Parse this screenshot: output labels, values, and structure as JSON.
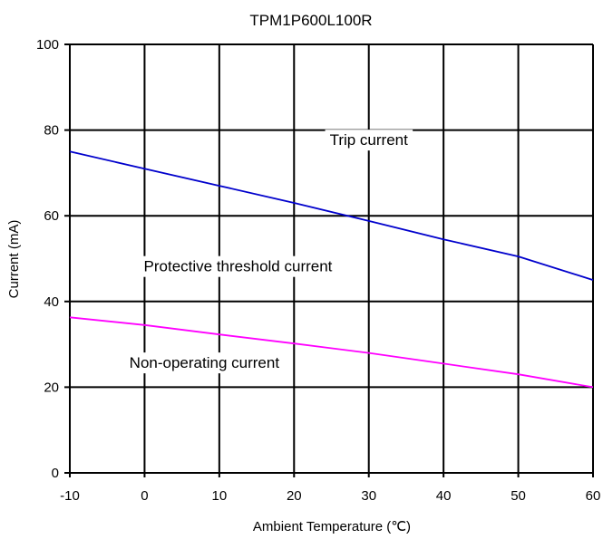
{
  "chart_data": {
    "type": "line",
    "title": "TPM1P600L100R",
    "xlabel": "Ambient Temperature (℃)",
    "ylabel": "Current (mA)",
    "xlim": [
      -10,
      60
    ],
    "ylim": [
      0,
      100
    ],
    "x_ticks": [
      -10,
      0,
      10,
      20,
      30,
      40,
      50,
      60
    ],
    "y_ticks": [
      0,
      20,
      40,
      60,
      80,
      100
    ],
    "grid": true,
    "series": [
      {
        "color": "#0000cc",
        "x": [
          -10,
          0,
          10,
          20,
          30,
          40,
          50,
          60
        ],
        "y": [
          75,
          71,
          67,
          63,
          58.8,
          54.5,
          50.5,
          45
        ]
      },
      {
        "color": "#ff00ff",
        "x": [
          -10,
          0,
          10,
          20,
          30,
          40,
          50,
          60
        ],
        "y": [
          36.3,
          34.5,
          32.3,
          30.2,
          28,
          25.5,
          23,
          20
        ]
      }
    ],
    "annotations": [
      {
        "text": "Trip current",
        "x": 30,
        "y": 76.5
      },
      {
        "text": "Protective threshold current",
        "x": 12.5,
        "y": 47
      },
      {
        "text": "Non-operating current",
        "x": 8,
        "y": 24.5
      }
    ]
  }
}
